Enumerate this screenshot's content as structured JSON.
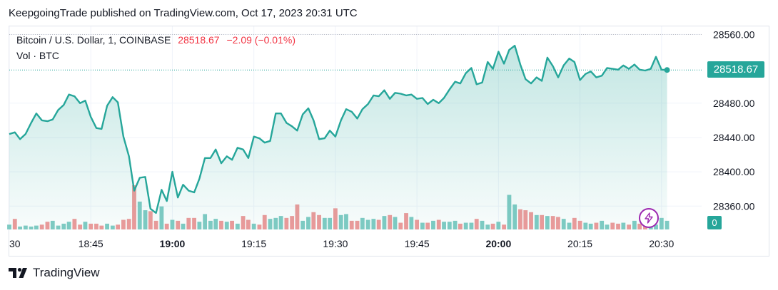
{
  "header": {
    "publish_text": "KeepgoingTrade published on TradingView.com, Oct 17, 2023 20:31 UTC"
  },
  "legend": {
    "symbol": "Bitcoin / U.S. Dollar, 1, COINBASE",
    "last_value": "28518.67",
    "change": "−2.09 (−0.01%)",
    "volume_label": "Vol · BTC"
  },
  "price_badge": {
    "text": "28518.67",
    "color": "#26a69a"
  },
  "volume_badge": {
    "text": "0",
    "color": "#26a69a"
  },
  "footer": {
    "brand": "TradingView"
  },
  "icons": {
    "flash": "flash-icon",
    "logo": "tradingview-logo-icon"
  },
  "colors": {
    "line": "#26a69a",
    "fill": "#26a69a",
    "up_volume": "#80cbc4",
    "down_volume": "#ef9a9a",
    "grid": "#f0f3fa",
    "brand_purple": "#9c27b0"
  },
  "chart_data": {
    "type": "line",
    "title": "Bitcoin / U.S. Dollar, 1, COINBASE",
    "xlabel": "",
    "ylabel": "",
    "x_tick_labels": [
      "30",
      "18:45",
      "19:00",
      "19:15",
      "19:30",
      "19:45",
      "20:00",
      "20:15",
      "20:30"
    ],
    "x_tick_bold": [
      false,
      false,
      true,
      false,
      false,
      false,
      true,
      false,
      false
    ],
    "y_tick_labels": [
      "28560.00",
      "28480.00",
      "28440.00",
      "28400.00",
      "28360.00"
    ],
    "y_tick_values": [
      28560,
      28480,
      28440,
      28400,
      28360
    ],
    "ylim": [
      28332,
      28567
    ],
    "xlim": [
      18.5,
      20.623
    ],
    "grid": true,
    "last_price": 28518.67,
    "price": {
      "x": [
        18.5,
        18.517,
        18.533,
        18.55,
        18.567,
        18.583,
        18.6,
        18.617,
        18.633,
        18.65,
        18.667,
        18.683,
        18.7,
        18.717,
        18.733,
        18.75,
        18.767,
        18.783,
        18.8,
        18.817,
        18.833,
        18.85,
        18.867,
        18.883,
        18.9,
        18.917,
        18.933,
        18.95,
        18.967,
        18.983,
        19.0,
        19.017,
        19.033,
        19.05,
        19.067,
        19.083,
        19.1,
        19.117,
        19.133,
        19.15,
        19.167,
        19.183,
        19.2,
        19.217,
        19.233,
        19.25,
        19.267,
        19.283,
        19.3,
        19.317,
        19.333,
        19.35,
        19.367,
        19.383,
        19.4,
        19.417,
        19.433,
        19.45,
        19.467,
        19.483,
        19.5,
        19.517,
        19.533,
        19.55,
        19.567,
        19.583,
        19.6,
        19.617,
        19.633,
        19.65,
        19.667,
        19.683,
        19.7,
        19.717,
        19.733,
        19.75,
        19.767,
        19.783,
        19.8,
        19.817,
        19.833,
        19.85,
        19.867,
        19.883,
        19.9,
        19.917,
        19.933,
        19.95,
        19.967,
        19.983,
        20.0,
        20.017,
        20.033,
        20.05,
        20.067,
        20.083,
        20.1,
        20.117,
        20.133,
        20.15,
        20.167,
        20.183,
        20.2,
        20.217,
        20.233,
        20.25,
        20.267,
        20.283,
        20.3,
        20.317,
        20.333,
        20.35,
        20.367,
        20.383,
        20.4,
        20.417,
        20.433,
        20.45,
        20.467,
        20.483,
        20.5,
        20.517
      ],
      "y": [
        28444,
        28446,
        28438,
        28444,
        28457,
        28468,
        28460,
        28459,
        28461,
        28472,
        28478,
        28490,
        28488,
        28480,
        28483,
        28464,
        28451,
        28450,
        28477,
        28487,
        28481,
        28441,
        28418,
        28378,
        28393,
        28394,
        28357,
        28352,
        28379,
        28366,
        28400,
        28370,
        28385,
        28378,
        28376,
        28392,
        28416,
        28416,
        28426,
        28410,
        28418,
        28414,
        28428,
        28426,
        28416,
        28441,
        28439,
        28434,
        28436,
        28468,
        28468,
        28457,
        28453,
        28448,
        28467,
        28474,
        28460,
        28438,
        28439,
        28448,
        28441,
        28460,
        28473,
        28470,
        28462,
        28473,
        28479,
        28489,
        28488,
        28495,
        28485,
        28492,
        28491,
        28489,
        28490,
        28485,
        28486,
        28479,
        28484,
        28480,
        28486,
        28496,
        28505,
        28503,
        28515,
        28521,
        28502,
        28504,
        28528,
        28520,
        28540,
        28526,
        28542,
        28547,
        28525,
        28508,
        28503,
        28510,
        28506,
        28533,
        28523,
        28510,
        28524,
        28532,
        28528,
        28507,
        28514,
        28517,
        28510,
        28512,
        28521,
        28520,
        28519,
        28524,
        28520,
        28525,
        28519,
        28518,
        28520,
        28534,
        28519,
        28518.67
      ]
    },
    "volume": {
      "x": [
        18.5,
        18.517,
        18.533,
        18.55,
        18.567,
        18.583,
        18.6,
        18.617,
        18.633,
        18.65,
        18.667,
        18.683,
        18.7,
        18.717,
        18.733,
        18.75,
        18.767,
        18.783,
        18.8,
        18.817,
        18.833,
        18.85,
        18.867,
        18.883,
        18.9,
        18.917,
        18.933,
        18.95,
        18.967,
        18.983,
        19.0,
        19.017,
        19.033,
        19.05,
        19.067,
        19.083,
        19.1,
        19.117,
        19.133,
        19.15,
        19.167,
        19.183,
        19.2,
        19.217,
        19.233,
        19.25,
        19.267,
        19.283,
        19.3,
        19.317,
        19.333,
        19.35,
        19.367,
        19.383,
        19.4,
        19.417,
        19.433,
        19.45,
        19.467,
        19.483,
        19.5,
        19.517,
        19.533,
        19.55,
        19.567,
        19.583,
        19.6,
        19.617,
        19.633,
        19.65,
        19.667,
        19.683,
        19.7,
        19.717,
        19.733,
        19.75,
        19.767,
        19.783,
        19.8,
        19.817,
        19.833,
        19.85,
        19.867,
        19.883,
        19.9,
        19.917,
        19.933,
        19.95,
        19.967,
        19.983,
        20.0,
        20.017,
        20.033,
        20.05,
        20.067,
        20.083,
        20.1,
        20.117,
        20.133,
        20.15,
        20.167,
        20.183,
        20.2,
        20.217,
        20.233,
        20.25,
        20.267,
        20.283,
        20.3,
        20.317,
        20.333,
        20.35,
        20.367,
        20.383,
        20.4,
        20.417,
        20.433,
        20.45,
        20.467,
        20.483,
        20.5,
        20.517
      ],
      "values": [
        0.25,
        0.55,
        0.15,
        0.2,
        0.15,
        0.2,
        0.25,
        0.4,
        0.45,
        0.2,
        0.3,
        0.4,
        0.55,
        0.25,
        0.4,
        0.3,
        0.3,
        0.2,
        0.3,
        0.2,
        0.25,
        0.5,
        0.55,
        2.3,
        1.45,
        1.0,
        0.95,
        0.45,
        1.2,
        0.3,
        0.5,
        0.45,
        0.3,
        0.6,
        0.6,
        0.4,
        0.8,
        0.45,
        0.55,
        0.45,
        0.4,
        0.45,
        0.3,
        0.7,
        0.5,
        0.3,
        0.25,
        0.75,
        0.55,
        0.6,
        0.7,
        0.6,
        0.7,
        1.3,
        0.45,
        0.65,
        0.9,
        0.75,
        0.6,
        0.6,
        1.1,
        0.75,
        0.8,
        0.45,
        0.45,
        0.6,
        0.5,
        0.55,
        0.5,
        0.7,
        0.75,
        0.65,
        0.35,
        0.85,
        0.65,
        0.5,
        0.35,
        0.35,
        0.45,
        0.5,
        0.4,
        0.4,
        0.45,
        0.3,
        0.35,
        0.35,
        0.55,
        0.45,
        0.25,
        0.3,
        0.4,
        0.25,
        1.8,
        1.3,
        1.05,
        1.0,
        0.9,
        0.75,
        0.75,
        0.7,
        0.7,
        0.65,
        0.55,
        0.35,
        0.6,
        0.45,
        0.35,
        0.3,
        0.35,
        0.45,
        0.25,
        0.35,
        0.3,
        0.35,
        0.25,
        0.45,
        0.3,
        0.35,
        0.3,
        0.25,
        0.6,
        0.45
      ],
      "direction": [
        "up",
        "down",
        "up",
        "up",
        "up",
        "up",
        "down",
        "down",
        "up",
        "up",
        "up",
        "up",
        "down",
        "down",
        "up",
        "down",
        "down",
        "down",
        "up",
        "up",
        "down",
        "down",
        "down",
        "down",
        "up",
        "up",
        "down",
        "down",
        "up",
        "down",
        "up",
        "down",
        "up",
        "down",
        "down",
        "up",
        "up",
        "up",
        "up",
        "down",
        "up",
        "down",
        "up",
        "down",
        "down",
        "up",
        "down",
        "down",
        "up",
        "up",
        "up",
        "down",
        "down",
        "down",
        "up",
        "up",
        "down",
        "down",
        "up",
        "up",
        "down",
        "up",
        "up",
        "down",
        "down",
        "up",
        "up",
        "up",
        "down",
        "up",
        "down",
        "up",
        "down",
        "down",
        "up",
        "down",
        "up",
        "down",
        "up",
        "down",
        "up",
        "up",
        "up",
        "down",
        "up",
        "up",
        "down",
        "up",
        "up",
        "down",
        "up",
        "down",
        "up",
        "up",
        "down",
        "down",
        "down",
        "up",
        "down",
        "up",
        "down",
        "down",
        "up",
        "up",
        "down",
        "down",
        "up",
        "up",
        "down",
        "up",
        "up",
        "down",
        "down",
        "up",
        "down",
        "up",
        "down",
        "down",
        "up",
        "up",
        "up",
        "up"
      ]
    }
  }
}
